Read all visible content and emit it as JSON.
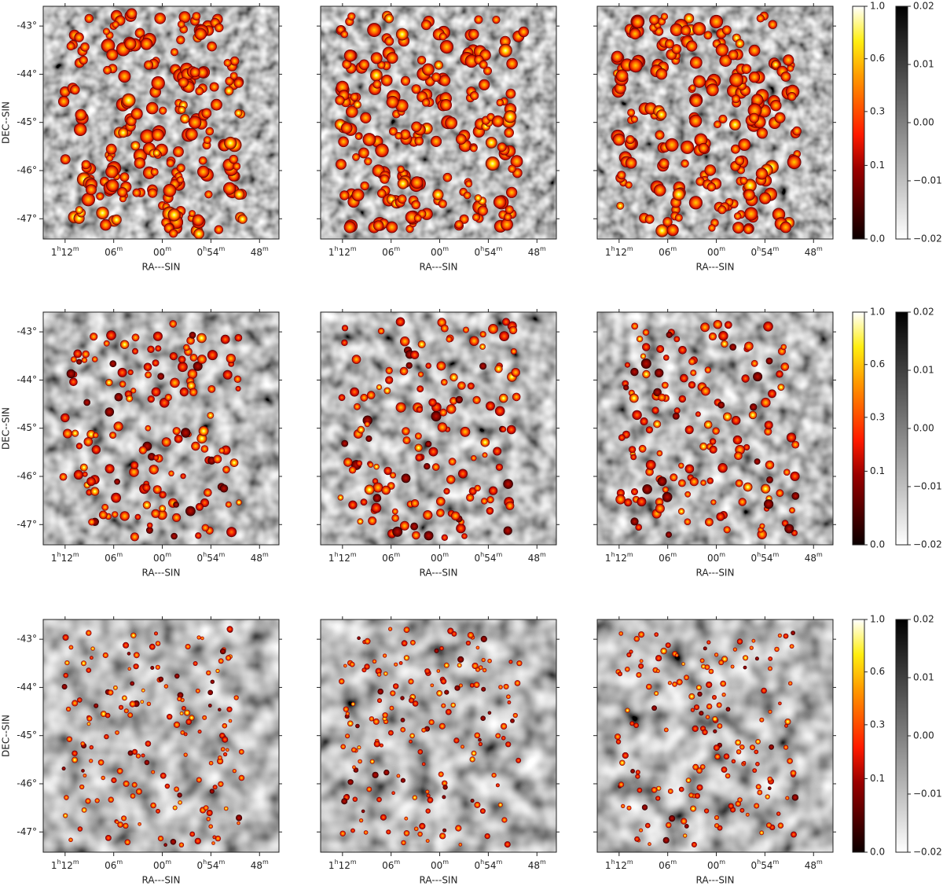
{
  "chart_data": {
    "type": "image",
    "x_label": "RA---SIN",
    "y_label": "DEC--SIN",
    "xlim": [
      74.7,
      45.6
    ],
    "ylim": [
      -47.42,
      -42.59
    ],
    "xticks": [
      {
        "value": 72,
        "label": [
          "1",
          "h",
          "12",
          "m"
        ]
      },
      {
        "value": 66,
        "label": [
          "06",
          "m"
        ]
      },
      {
        "value": 60,
        "label": [
          "00",
          "m"
        ]
      },
      {
        "value": 54,
        "label": [
          "0",
          "h",
          "54",
          "m"
        ]
      },
      {
        "value": 48,
        "label": [
          "48",
          "m"
        ]
      }
    ],
    "yticks": [
      {
        "value": -43,
        "label": "-43°"
      },
      {
        "value": -44,
        "label": "-44°"
      },
      {
        "value": -45,
        "label": "-45°"
      },
      {
        "value": -46,
        "label": "-46°"
      },
      {
        "value": -47,
        "label": "-47°"
      }
    ],
    "colorbars": [
      {
        "cmap": "hot",
        "scale": "sqrt",
        "lim": [
          0,
          1
        ],
        "ticks": [
          {
            "value": 0,
            "label": "0.0"
          },
          {
            "value": 0.1,
            "label": "0.1"
          },
          {
            "value": 0.3,
            "label": "0.3"
          },
          {
            "value": 0.6,
            "label": "0.6"
          },
          {
            "value": 1,
            "label": "1.0"
          }
        ]
      },
      {
        "cmap": "gray_r",
        "scale": "linear",
        "lim": [
          -0.02,
          0.02
        ],
        "ticks": [
          {
            "value": -0.02,
            "label": "−0.02"
          },
          {
            "value": -0.01,
            "label": "−0.01"
          },
          {
            "value": 0,
            "label": "0.00"
          },
          {
            "value": 0.01,
            "label": "0.01"
          },
          {
            "value": 0.02,
            "label": "0.02"
          }
        ]
      }
    ]
  }
}
